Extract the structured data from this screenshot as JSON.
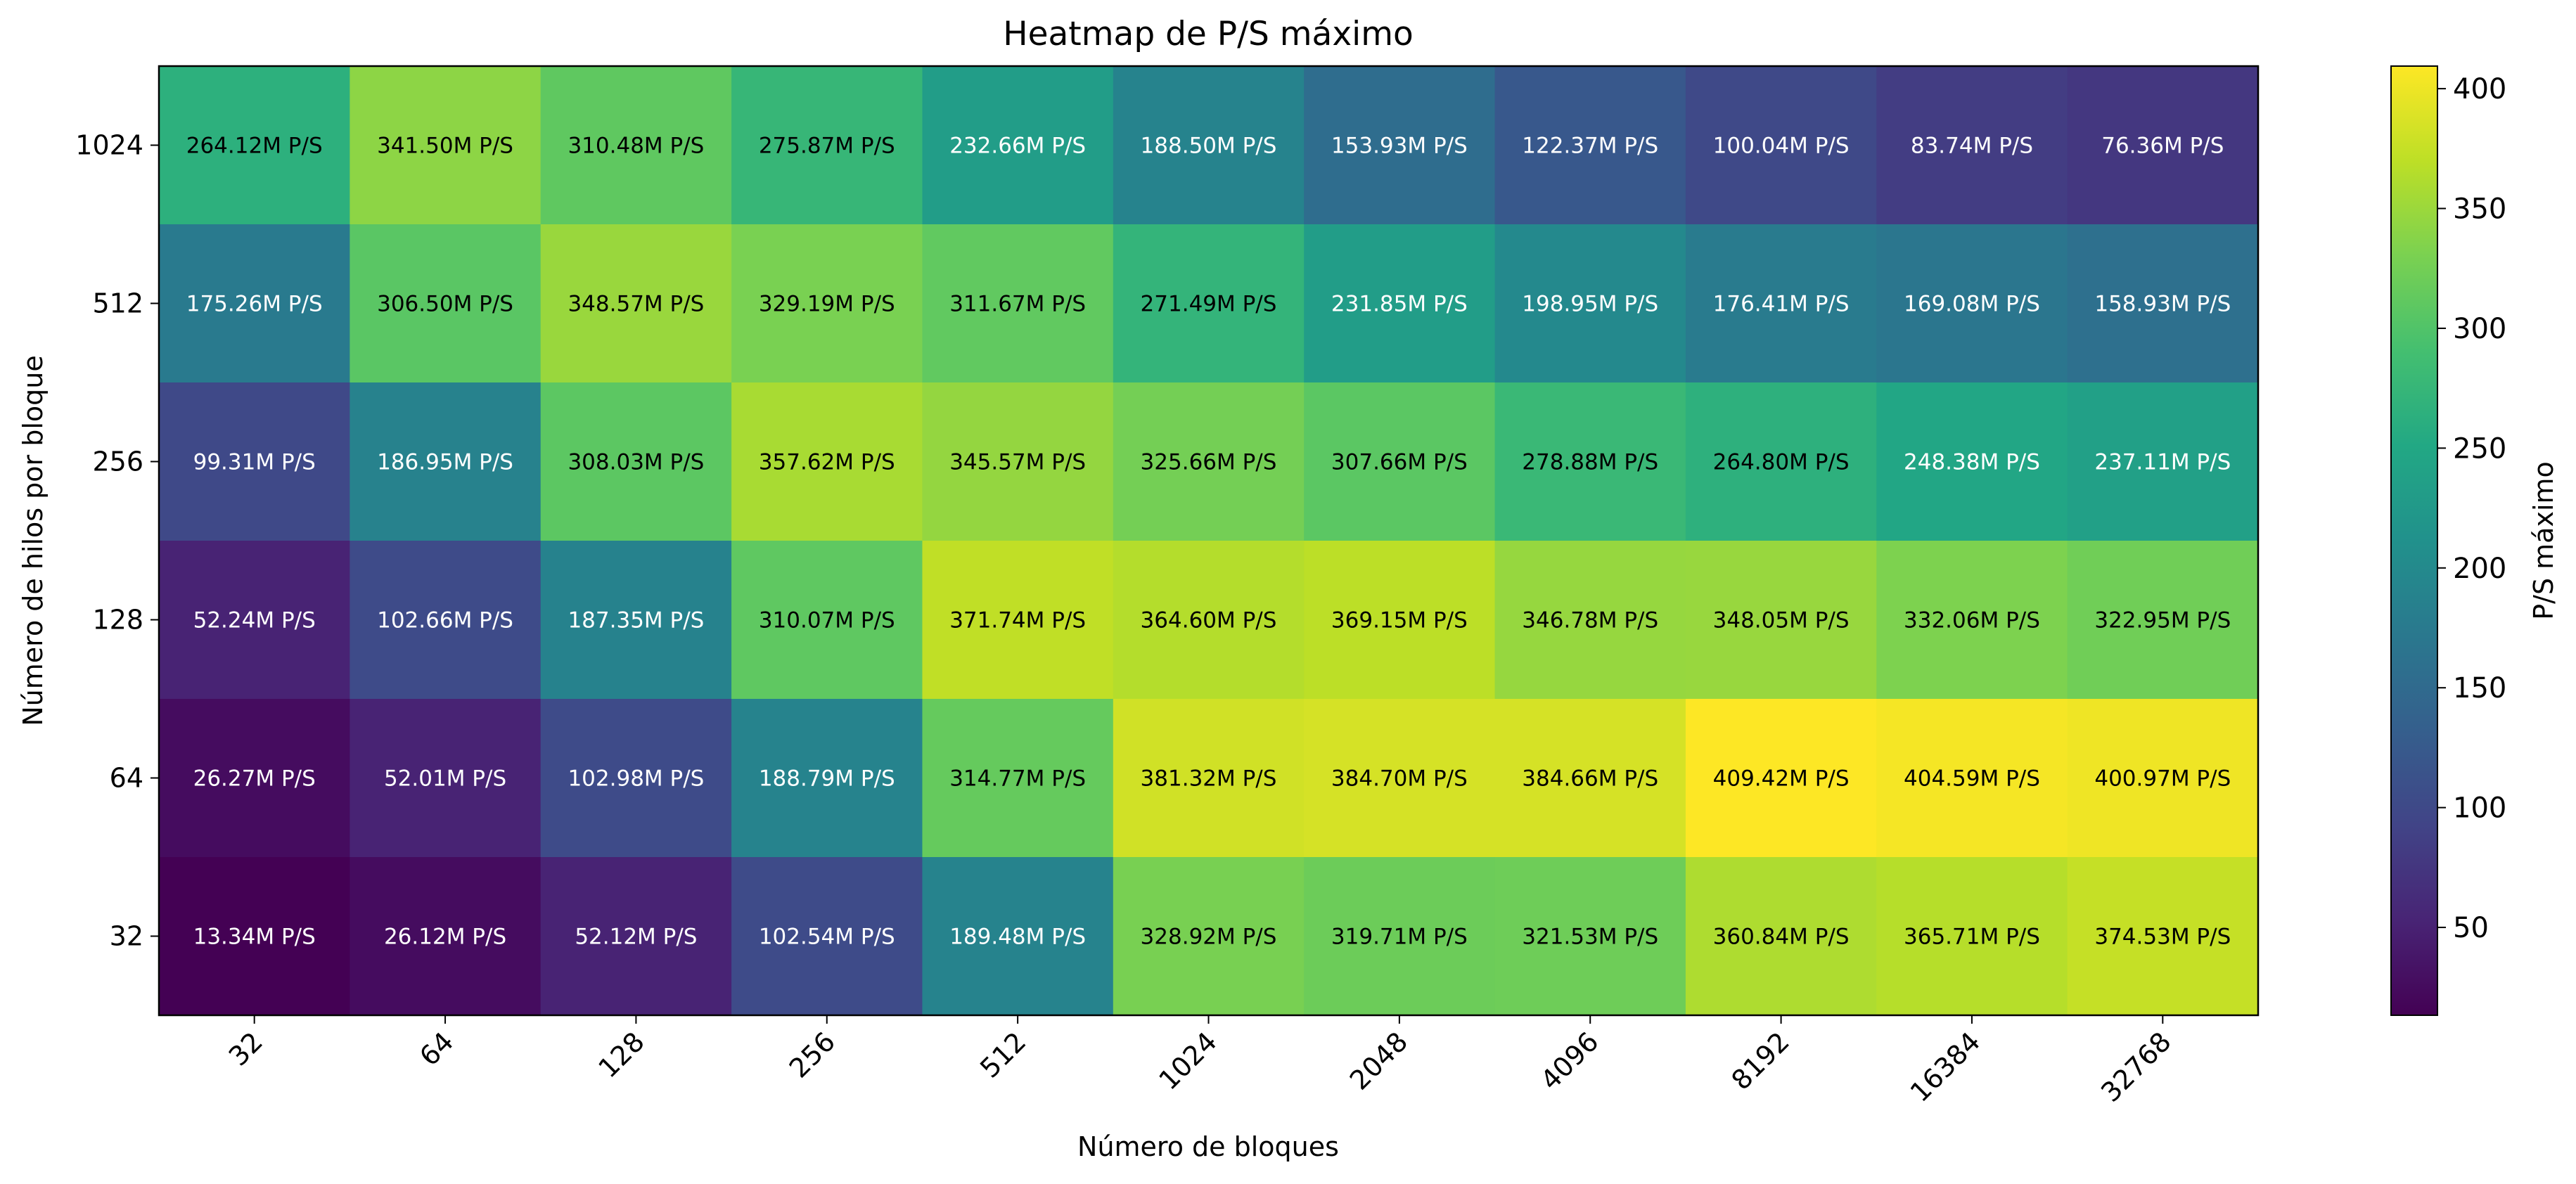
{
  "chart_data": {
    "type": "heatmap",
    "title": "Heatmap de P/S máximo",
    "xlabel": "Número de bloques",
    "ylabel": "Número de hilos por bloque",
    "colorbar_label": "P/S máximo",
    "x_categories": [
      "32",
      "64",
      "128",
      "256",
      "512",
      "1024",
      "2048",
      "4096",
      "8192",
      "16384",
      "32768"
    ],
    "y_categories": [
      "1024",
      "512",
      "256",
      "128",
      "64",
      "32"
    ],
    "colormap": "viridis",
    "value_range": [
      13.34,
      409.42
    ],
    "colorbar_ticks": [
      50,
      100,
      150,
      200,
      250,
      300,
      350,
      400
    ],
    "unit_suffix": "M P/S",
    "values": [
      [
        264.12,
        341.5,
        310.48,
        275.87,
        232.66,
        188.5,
        153.93,
        122.37,
        100.04,
        83.74,
        76.36
      ],
      [
        175.26,
        306.5,
        348.57,
        329.19,
        311.67,
        271.49,
        231.85,
        198.95,
        176.41,
        169.08,
        158.93
      ],
      [
        99.31,
        186.95,
        308.03,
        357.62,
        345.57,
        325.66,
        307.66,
        278.88,
        264.8,
        248.38,
        237.11
      ],
      [
        52.24,
        102.66,
        187.35,
        310.07,
        371.74,
        364.6,
        369.15,
        346.78,
        348.05,
        332.06,
        322.95
      ],
      [
        26.27,
        52.01,
        102.98,
        188.79,
        314.77,
        381.32,
        384.7,
        384.66,
        409.42,
        404.59,
        400.97
      ],
      [
        13.34,
        26.12,
        52.12,
        102.54,
        189.48,
        328.92,
        319.71,
        321.53,
        360.84,
        365.71,
        374.53
      ]
    ],
    "grid": false,
    "legend": "colorbar-right"
  }
}
